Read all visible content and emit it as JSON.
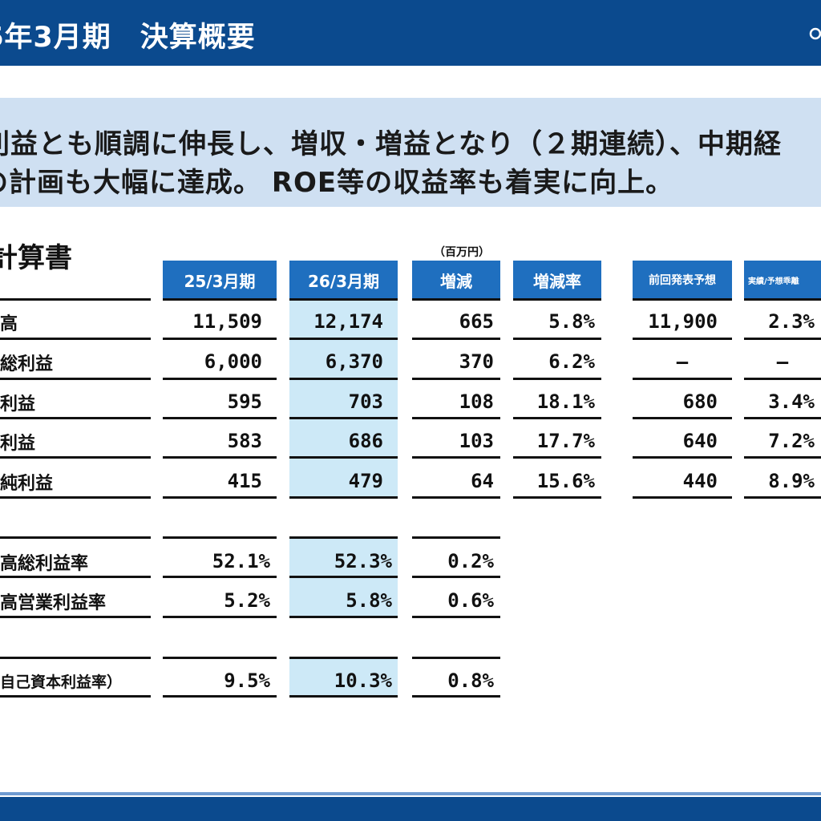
{
  "header": {
    "title": "6年3月期　決算概要"
  },
  "summary": {
    "line1": "利益とも順調に伸長し、増収・増益となり（２期連続）、中期経",
    "line2": "の計画も大幅に達成。 ROE等の収益率も着実に向上。"
  },
  "section": {
    "title": "計算書",
    "unit": "（百万円）"
  },
  "columns": [
    "25/3月期",
    "26/3月期",
    "増減",
    "増減率",
    "前回発表予想",
    "実績/予想乖離"
  ],
  "rows": [
    {
      "label": "高",
      "values": [
        "11,509",
        "12,174",
        "665",
        "5.8%",
        "11,900",
        "2.3%"
      ]
    },
    {
      "label": "総利益",
      "values": [
        "6,000",
        "6,370",
        "370",
        "6.2%",
        "—",
        "—"
      ]
    },
    {
      "label": "利益",
      "values": [
        "595",
        "703",
        "108",
        "18.1%",
        "680",
        "3.4%"
      ]
    },
    {
      "label": "利益",
      "values": [
        "583",
        "686",
        "103",
        "17.7%",
        "640",
        "7.2%"
      ]
    },
    {
      "label": "純利益",
      "values": [
        "415",
        "479",
        "64",
        "15.6%",
        "440",
        "8.9%"
      ]
    }
  ],
  "ratios": [
    {
      "label": "高総利益率",
      "values": [
        "52.1%",
        "52.3%",
        "0.2%"
      ]
    },
    {
      "label": "高営業利益率",
      "values": [
        "5.2%",
        "5.8%",
        "0.6%"
      ]
    },
    {
      "label": "自己資本利益率）",
      "values": [
        "9.5%",
        "10.3%",
        "0.8%"
      ]
    }
  ],
  "colors": {
    "header": "#0b4a8e",
    "column_header": "#1f6fbf",
    "highlight": "#cde9f7",
    "summary_bg": "#cfe0f2"
  }
}
